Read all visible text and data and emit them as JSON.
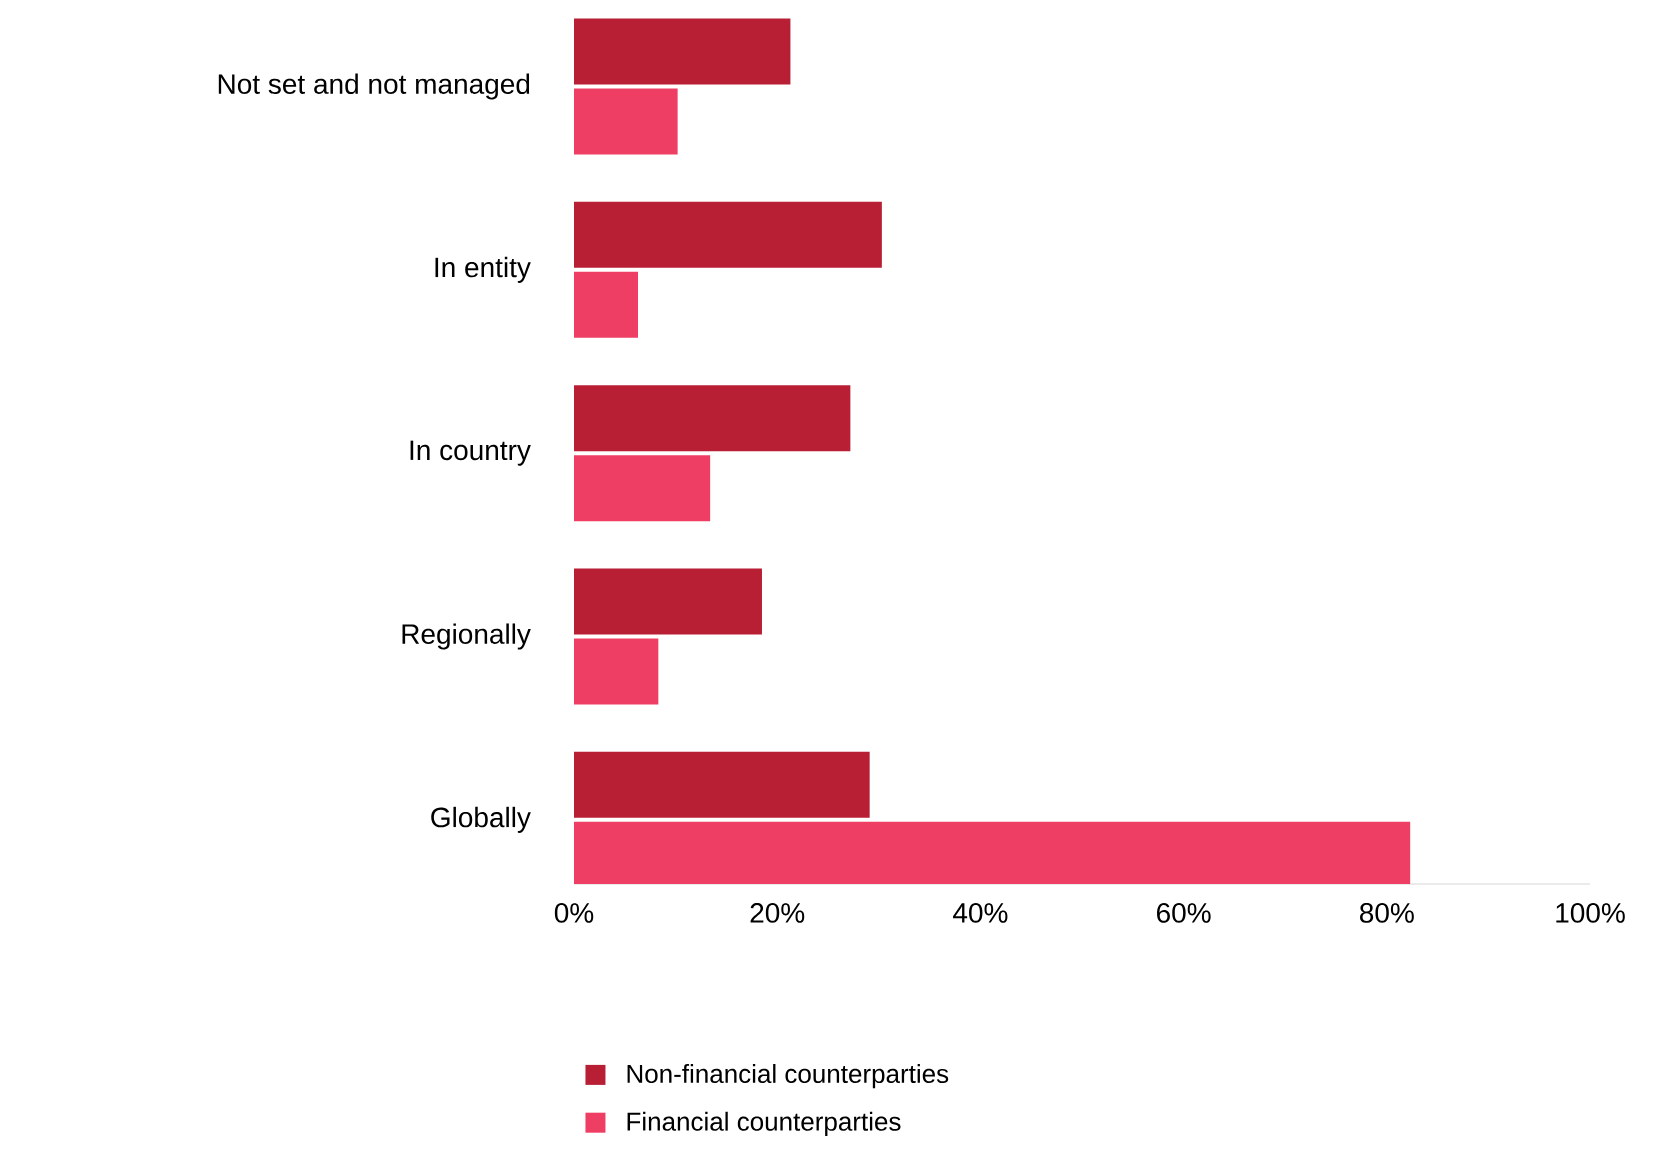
{
  "chart_data": {
    "type": "bar",
    "orientation": "horizontal",
    "categories": [
      "Not set and not managed",
      "In entity",
      "In country",
      "Regionally",
      "Globally"
    ],
    "series": [
      {
        "name": "Non-financial counterparties",
        "color": "#b81e34",
        "values": [
          21.3,
          30.3,
          27.2,
          18.5,
          29.1
        ]
      },
      {
        "name": "Financial counterparties",
        "color": "#ef3e63",
        "values": [
          10.2,
          6.3,
          13.4,
          8.3,
          82.3
        ]
      }
    ],
    "xlim": [
      0,
      100
    ],
    "xticks": [
      {
        "value": 0,
        "label": "0%"
      },
      {
        "value": 20,
        "label": "20%"
      },
      {
        "value": 40,
        "label": "40%"
      },
      {
        "value": 60,
        "label": "60%"
      },
      {
        "value": 80,
        "label": "80%"
      },
      {
        "value": 100,
        "label": "100%"
      }
    ],
    "grid": false,
    "legend": "bottom"
  }
}
